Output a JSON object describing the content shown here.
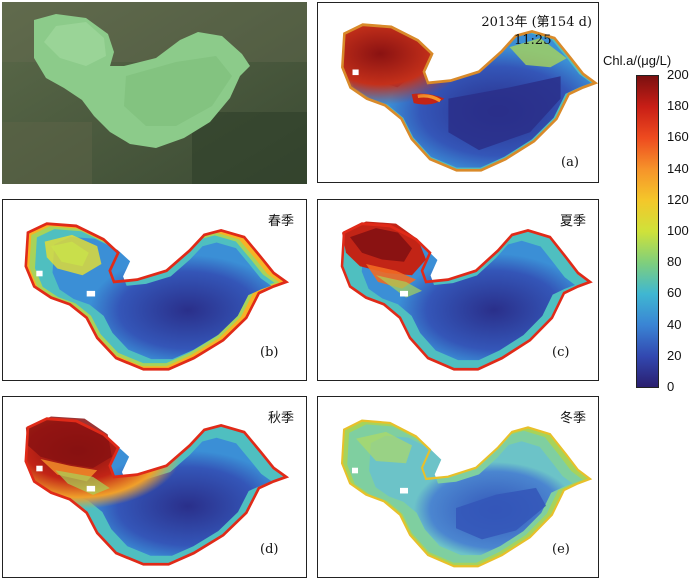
{
  "panel_a": {
    "year_label": "2013年 (第154 d)",
    "time_label": "11:25",
    "letter": "(a)"
  },
  "panel_b": {
    "season": "春季",
    "letter": "(b)"
  },
  "panel_c": {
    "season": "夏季",
    "letter": "(c)"
  },
  "panel_d": {
    "season": "秋季",
    "letter": "(d)"
  },
  "panel_e": {
    "season": "冬季",
    "letter": "(e)"
  },
  "legend": {
    "title": "Chl.a/(μg/L)",
    "ticks": [
      "200",
      "180",
      "160",
      "140",
      "120",
      "100",
      "80",
      "60",
      "40",
      "20",
      "0"
    ],
    "colors": [
      "#8a1212",
      "#e02a18",
      "#f26a22",
      "#f7b325",
      "#e8df2f",
      "#a7d35a",
      "#4fbfc0",
      "#3b8fd6",
      "#3456b8",
      "#2a2f8a"
    ]
  }
}
